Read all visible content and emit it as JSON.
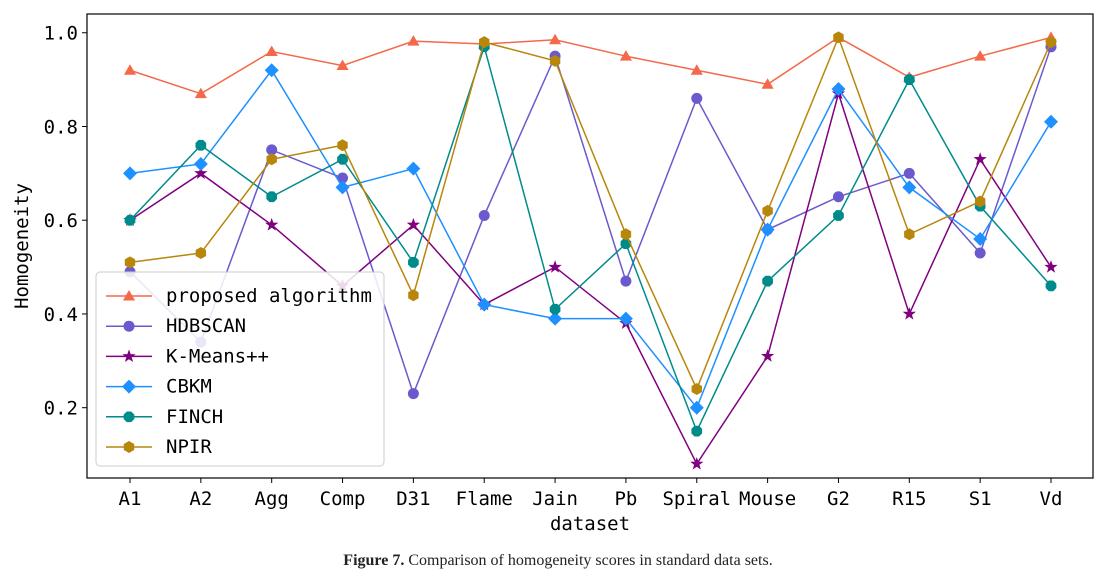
{
  "caption": {
    "label": "Figure 7.",
    "text": "Comparison of homogeneity scores in standard data sets."
  },
  "chart_data": {
    "type": "line",
    "xlabel": "dataset",
    "ylabel": "Homogeneity",
    "ylim": [
      0.05,
      1.04
    ],
    "yticks": [
      0.2,
      0.4,
      0.6,
      0.8,
      1.0
    ],
    "ytick_labels": [
      "0.2",
      "0.4",
      "0.6",
      "0.8",
      "1.0"
    ],
    "grid": false,
    "legend_position": "lower-left",
    "categories": [
      "A1",
      "A2",
      "Agg",
      "Comp",
      "D31",
      "Flame",
      "Jain",
      "Pb",
      "Spiral",
      "Mouse",
      "G2",
      "R15",
      "S1",
      "Vd"
    ],
    "series": [
      {
        "name": "proposed algorithm",
        "color": "#f4694a",
        "marker": "triangle",
        "values": [
          0.92,
          0.87,
          0.96,
          0.93,
          0.982,
          0.976,
          0.985,
          0.95,
          0.92,
          0.89,
          0.99,
          0.905,
          0.95,
          0.99
        ]
      },
      {
        "name": "HDBSCAN",
        "color": "#6a5acd",
        "marker": "circle",
        "values": [
          0.49,
          0.34,
          0.75,
          0.69,
          0.23,
          0.61,
          0.95,
          0.47,
          0.86,
          0.58,
          0.65,
          0.7,
          0.53,
          0.97
        ]
      },
      {
        "name": "K-Means++",
        "color": "#800080",
        "marker": "star",
        "values": [
          0.6,
          0.7,
          0.59,
          0.46,
          0.59,
          0.42,
          0.5,
          0.38,
          0.08,
          0.31,
          0.87,
          0.4,
          0.73,
          0.5
        ]
      },
      {
        "name": "CBKM",
        "color": "#1e90ff",
        "marker": "diamond",
        "values": [
          0.7,
          0.72,
          0.92,
          0.67,
          0.71,
          0.42,
          0.39,
          0.39,
          0.2,
          0.58,
          0.88,
          0.67,
          0.56,
          0.81
        ]
      },
      {
        "name": "FINCH",
        "color": "#008b8b",
        "marker": "octagon",
        "values": [
          0.6,
          0.76,
          0.65,
          0.73,
          0.51,
          0.97,
          0.41,
          0.55,
          0.15,
          0.47,
          0.61,
          0.9,
          0.63,
          0.46
        ]
      },
      {
        "name": "NPIR",
        "color": "#b8860b",
        "marker": "hexagon",
        "values": [
          0.51,
          0.53,
          0.73,
          0.76,
          0.44,
          0.98,
          0.94,
          0.57,
          0.24,
          0.62,
          0.99,
          0.57,
          0.64,
          0.98
        ]
      }
    ]
  }
}
